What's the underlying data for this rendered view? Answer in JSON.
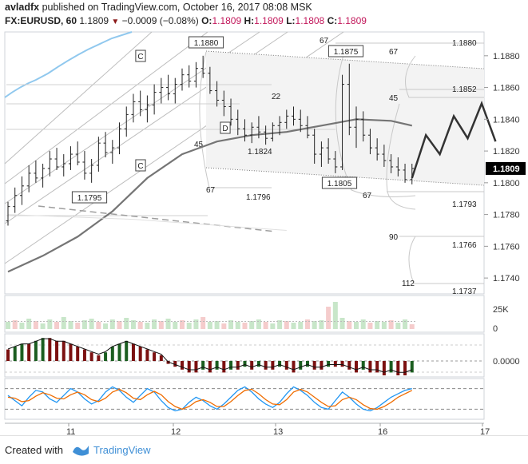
{
  "header": {
    "author": "avladfx",
    "published_text": "published on TradingView.com, October 16, 2017 08:08 MSK",
    "symbol": "FX:EURUSD, 60",
    "last": "1.1809",
    "change": "−0.0009 (−0.08%)",
    "open_label": "O:",
    "open": "1.1809",
    "high_label": "H:",
    "high": "1.1809",
    "low_label": "L:",
    "low": "1.1808",
    "close_label": "C:",
    "close": "1.1809"
  },
  "footer": {
    "created_with": "Created with",
    "brand": "TradingView"
  },
  "colors": {
    "up": "#1b5e20",
    "down": "#7b1010",
    "candle": "#222222",
    "price_badge": "#000000",
    "macd_line": "#111111",
    "stoch_k": "#2196f3",
    "stoch_d": "#ef6c00"
  },
  "chart_data": {
    "type": "line",
    "price_axis": {
      "ylim": [
        1.173,
        1.1895
      ],
      "ticks": [
        "1.1880",
        "1.1860",
        "1.1840",
        "1.1820",
        "1.1800",
        "1.1780",
        "1.1760",
        "1.1740"
      ],
      "current_price": "1.1809"
    },
    "time_axis": {
      "ticks": [
        "11",
        "12",
        "13",
        "16",
        "17"
      ],
      "xlim": [
        0,
        1
      ]
    },
    "price_series": [
      [
        0,
        1.1776,
        1.1788,
        1.1773,
        1.1785
      ],
      [
        1,
        1.1785,
        1.1797,
        1.1781,
        1.1792
      ],
      [
        2,
        1.1792,
        1.1804,
        1.1786,
        1.1798
      ],
      [
        3,
        1.1798,
        1.1811,
        1.1794,
        1.1806
      ],
      [
        4,
        1.1806,
        1.1814,
        1.18,
        1.1803
      ],
      [
        5,
        1.1803,
        1.1812,
        1.1797,
        1.1809
      ],
      [
        6,
        1.1809,
        1.182,
        1.1804,
        1.1815
      ],
      [
        7,
        1.1815,
        1.1822,
        1.1808,
        1.181
      ],
      [
        8,
        1.181,
        1.1818,
        1.1804,
        1.1812
      ],
      [
        9,
        1.1812,
        1.1823,
        1.1808,
        1.1818
      ],
      [
        10,
        1.1818,
        1.1826,
        1.1811,
        1.1813
      ],
      [
        11,
        1.1813,
        1.182,
        1.1802,
        1.1806
      ],
      [
        12,
        1.1806,
        1.1815,
        1.18,
        1.1811
      ],
      [
        13,
        1.1811,
        1.1829,
        1.1807,
        1.1825
      ],
      [
        14,
        1.1825,
        1.1832,
        1.1816,
        1.1819
      ],
      [
        15,
        1.1819,
        1.1827,
        1.1812,
        1.1822
      ],
      [
        16,
        1.1822,
        1.1838,
        1.1818,
        1.1834
      ],
      [
        17,
        1.1834,
        1.1848,
        1.1829,
        1.1843
      ],
      [
        18,
        1.1843,
        1.1856,
        1.1838,
        1.1851
      ],
      [
        19,
        1.1851,
        1.1858,
        1.1842,
        1.1846
      ],
      [
        20,
        1.1846,
        1.1855,
        1.1838,
        1.1849
      ],
      [
        21,
        1.1849,
        1.1862,
        1.1843,
        1.1857
      ],
      [
        22,
        1.1857,
        1.1866,
        1.185,
        1.186
      ],
      [
        23,
        1.186,
        1.1868,
        1.1852,
        1.1856
      ],
      [
        24,
        1.1856,
        1.1866,
        1.185,
        1.1862
      ],
      [
        25,
        1.1862,
        1.1872,
        1.1858,
        1.1868
      ],
      [
        26,
        1.1868,
        1.1874,
        1.186,
        1.1864
      ],
      [
        27,
        1.1864,
        1.1876,
        1.186,
        1.1872
      ],
      [
        28,
        1.1872,
        1.188,
        1.1866,
        1.1869
      ],
      [
        29,
        1.1869,
        1.1873,
        1.1856,
        1.1858
      ],
      [
        30,
        1.1858,
        1.1864,
        1.1848,
        1.1852
      ],
      [
        31,
        1.1852,
        1.1858,
        1.1842,
        1.1848
      ],
      [
        32,
        1.1848,
        1.1853,
        1.1836,
        1.184
      ],
      [
        33,
        1.184,
        1.1846,
        1.183,
        1.1834
      ],
      [
        34,
        1.1834,
        1.184,
        1.1826,
        1.183
      ],
      [
        35,
        1.183,
        1.1838,
        1.1825,
        1.1835
      ],
      [
        36,
        1.1835,
        1.1842,
        1.1828,
        1.1832
      ],
      [
        37,
        1.1832,
        1.1836,
        1.1824,
        1.1828
      ],
      [
        38,
        1.1828,
        1.1838,
        1.1826,
        1.1836
      ],
      [
        39,
        1.1836,
        1.1842,
        1.183,
        1.1838
      ],
      [
        40,
        1.1838,
        1.1846,
        1.1834,
        1.1842
      ],
      [
        41,
        1.1842,
        1.1848,
        1.1836,
        1.184
      ],
      [
        42,
        1.184,
        1.1846,
        1.1832,
        1.1836
      ],
      [
        43,
        1.1836,
        1.1842,
        1.1828,
        1.183
      ],
      [
        44,
        1.183,
        1.1834,
        1.1812,
        1.1818
      ],
      [
        45,
        1.1818,
        1.1826,
        1.181,
        1.1822
      ],
      [
        46,
        1.1822,
        1.1828,
        1.1812,
        1.1815
      ],
      [
        47,
        1.1815,
        1.182,
        1.1806,
        1.181
      ],
      [
        48,
        1.181,
        1.1868,
        1.1808,
        1.1862
      ],
      [
        49,
        1.1862,
        1.1875,
        1.183,
        1.1835
      ],
      [
        50,
        1.1835,
        1.1848,
        1.1822,
        1.184
      ],
      [
        51,
        1.184,
        1.1845,
        1.1826,
        1.183
      ],
      [
        52,
        1.183,
        1.1834,
        1.1818,
        1.1822
      ],
      [
        53,
        1.1822,
        1.1828,
        1.1814,
        1.1818
      ],
      [
        54,
        1.1818,
        1.1824,
        1.181,
        1.1814
      ],
      [
        55,
        1.1814,
        1.1818,
        1.1806,
        1.181
      ],
      [
        56,
        1.181,
        1.1816,
        1.1804,
        1.1808
      ],
      [
        57,
        1.1808,
        1.1812,
        1.18,
        1.1802
      ],
      [
        58,
        1.1802,
        1.1812,
        1.1799,
        1.1809
      ]
    ],
    "ema_series": {
      "x": [
        0,
        5,
        10,
        15,
        20,
        25,
        30,
        35,
        40,
        45,
        50,
        55,
        58
      ],
      "y": [
        1.1744,
        1.1754,
        1.1766,
        1.1782,
        1.1803,
        1.1818,
        1.1826,
        1.183,
        1.1832,
        1.1836,
        1.184,
        1.1839,
        1.1836
      ]
    },
    "lower_ma_series": {
      "x": [
        0,
        18,
        40
      ],
      "y": [
        1.178,
        1.1777,
        1.177
      ]
    },
    "annotations": {
      "labels_c": [
        "C",
        "C"
      ],
      "label_d": "D",
      "price_labels": [
        "1.1880",
        "1.1875",
        "1.1795",
        "1.1805",
        "1.1824",
        "1.1796"
      ],
      "fib_levels": [
        "67",
        "22",
        "45",
        "67",
        "67",
        "45",
        "67",
        "90",
        "112"
      ],
      "right_levels": [
        "1.1880",
        "1.1852",
        "1.1793",
        "1.1766",
        "1.1737"
      ],
      "projection": {
        "x": [
          58,
          60,
          62,
          64,
          66,
          68,
          70
        ],
        "y": [
          1.1803,
          1.183,
          1.1818,
          1.1842,
          1.1828,
          1.185,
          1.1826
        ]
      }
    },
    "volume": {
      "label": "25K",
      "zero_label": "0",
      "values": [
        9,
        11,
        8,
        13,
        10,
        7,
        12,
        9,
        15,
        10,
        8,
        11,
        13,
        9,
        7,
        12,
        10,
        14,
        11,
        9,
        8,
        12,
        10,
        13,
        9,
        11,
        8,
        12,
        15,
        9,
        10,
        7,
        11,
        9,
        8,
        10,
        12,
        9,
        7,
        11,
        10,
        8,
        9,
        12,
        10,
        11,
        28,
        34,
        14,
        10,
        9,
        12,
        8,
        10,
        9,
        11,
        8,
        12,
        6
      ]
    },
    "macd": {
      "zero_label": "0.0000",
      "histogram": [
        4,
        5,
        6,
        6,
        7,
        8,
        8,
        7,
        7,
        6,
        5,
        4,
        3,
        2,
        3,
        5,
        6,
        7,
        6,
        5,
        4,
        3,
        2,
        -1,
        -2,
        -3,
        -4,
        -4,
        -3,
        -4,
        -3,
        -4,
        -3,
        -3,
        -2,
        -3,
        -2,
        -3,
        -3,
        -2,
        -3,
        -4,
        -3,
        -2,
        -3,
        -3,
        -2,
        -2,
        -2,
        -3,
        -4,
        -3,
        -4,
        -4,
        -5,
        -4,
        -5,
        -5,
        -4
      ]
    },
    "stochastic": {
      "k": [
        60,
        45,
        30,
        55,
        75,
        70,
        50,
        40,
        60,
        80,
        70,
        50,
        35,
        45,
        70,
        85,
        75,
        55,
        40,
        60,
        80,
        70,
        45,
        25,
        15,
        20,
        40,
        55,
        45,
        30,
        20,
        35,
        55,
        75,
        85,
        70,
        50,
        35,
        25,
        40,
        65,
        85,
        75,
        60,
        40,
        25,
        20,
        45,
        70,
        55,
        35,
        20,
        15,
        25,
        40,
        55,
        65,
        75,
        80
      ],
      "d": [
        55,
        52,
        42,
        45,
        58,
        68,
        62,
        52,
        50,
        62,
        70,
        62,
        48,
        42,
        52,
        70,
        78,
        68,
        52,
        48,
        62,
        72,
        62,
        42,
        28,
        20,
        28,
        42,
        48,
        40,
        28,
        28,
        42,
        60,
        75,
        78,
        65,
        48,
        35,
        33,
        48,
        70,
        78,
        70,
        55,
        40,
        28,
        30,
        48,
        55,
        48,
        33,
        22,
        20,
        28,
        40,
        55,
        65,
        75
      ]
    }
  }
}
